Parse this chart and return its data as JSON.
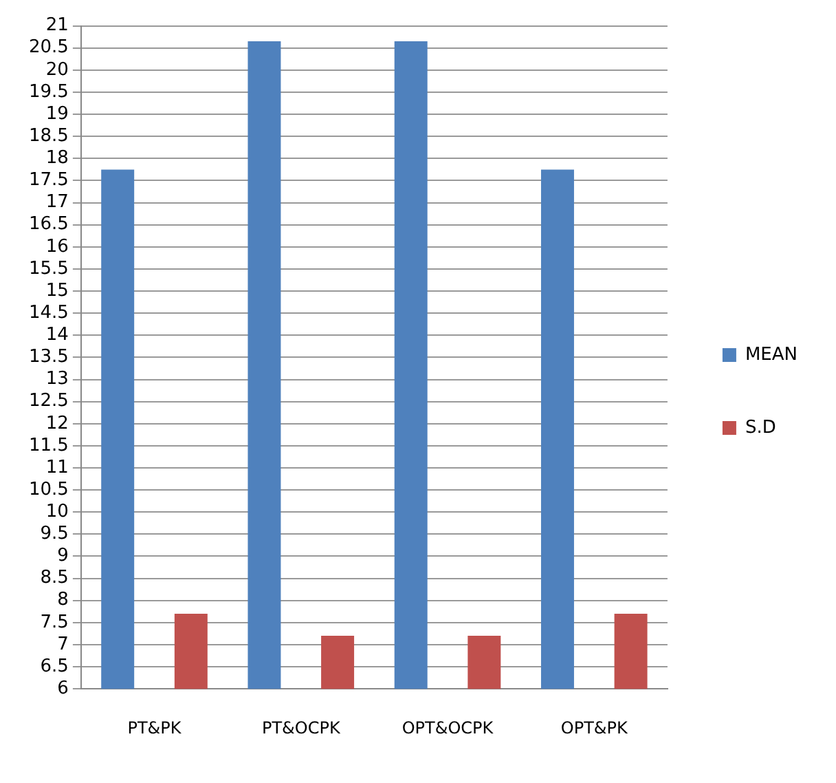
{
  "chart_data": {
    "type": "bar",
    "categories": [
      "PT&PK",
      "PT&OCPK",
      "OPT&OCPK",
      "OPT&PK"
    ],
    "series": [
      {
        "name": "MEAN",
        "color": "#4f81bd",
        "values": [
          17.75,
          20.65,
          20.65,
          17.75
        ]
      },
      {
        "name": "S.D",
        "color": "#c0504d",
        "values": [
          7.7,
          7.2,
          7.2,
          7.7
        ]
      }
    ],
    "ylim": [
      6,
      21
    ],
    "yticks": [
      6,
      6.5,
      7,
      7.5,
      8,
      8.5,
      9,
      9.5,
      10,
      10.5,
      11,
      11.5,
      12,
      12.5,
      13,
      13.5,
      14,
      14.5,
      15,
      15.5,
      16,
      16.5,
      17,
      17.5,
      18,
      18.5,
      19,
      19.5,
      20,
      20.5,
      21
    ],
    "grid": "y",
    "legend": "right"
  }
}
